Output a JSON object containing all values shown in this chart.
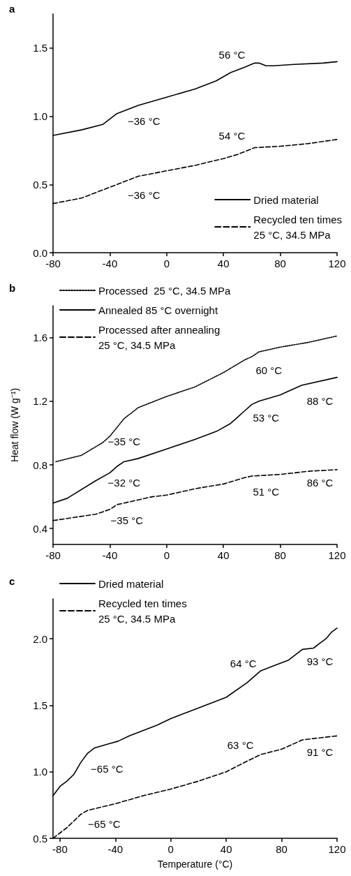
{
  "chart_data": [
    {
      "type": "line",
      "title": "a",
      "xlim": [
        -80,
        120
      ],
      "xticks": [
        -80,
        -40,
        0,
        40,
        80,
        120
      ],
      "ylim": [
        0,
        1.75
      ],
      "yticks": [
        {
          "value": 0,
          "label": "0.0"
        },
        0.5,
        {
          "value": 1,
          "label": "1.0"
        },
        1.5
      ],
      "grid": false,
      "legend": "bottom right",
      "series": [
        {
          "name": "Dried material",
          "color": "#000000",
          "line_style": "solid",
          "x": [
            -80,
            -60,
            -45,
            -35,
            -20,
            0,
            20,
            35,
            45,
            55,
            62,
            65,
            70,
            75,
            90,
            110,
            120
          ],
          "values": [
            0.86,
            0.9,
            0.94,
            1.02,
            1.08,
            1.14,
            1.2,
            1.26,
            1.32,
            1.36,
            1.39,
            1.39,
            1.37,
            1.37,
            1.38,
            1.39,
            1.4
          ]
        },
        {
          "name": "Recycled ten times\n25 °C, 34.5 MPa",
          "color": "#000000",
          "line_style": "dashed",
          "x": [
            -80,
            -60,
            -45,
            -35,
            -20,
            0,
            20,
            40,
            50,
            62,
            80,
            100,
            120
          ],
          "values": [
            0.36,
            0.4,
            0.46,
            0.5,
            0.56,
            0.6,
            0.64,
            0.69,
            0.72,
            0.77,
            0.78,
            0.8,
            0.83
          ]
        }
      ],
      "annotations": [
        "56 °C",
        "−36 °C",
        "54 °C",
        "−36 °C"
      ]
    },
    {
      "type": "line",
      "title": "b",
      "ylabel": "Heat flow (W g⁻¹)",
      "xlim": [
        -80,
        120
      ],
      "xticks": [
        -80,
        -40,
        0,
        40,
        80,
        120
      ],
      "ylim": [
        0.3,
        1.8
      ],
      "yticks": [
        0.4,
        0.8,
        1.2,
        1.6
      ],
      "grid": false,
      "legend": "top left",
      "series": [
        {
          "name": "Processed  25 °C, 34.5 MPa",
          "color": "#000000",
          "line_style": "dotted",
          "x": [
            -78,
            -60,
            -45,
            -40,
            -30,
            -20,
            0,
            20,
            40,
            55,
            60,
            65,
            80,
            100,
            120
          ],
          "values": [
            0.82,
            0.86,
            0.94,
            0.98,
            1.09,
            1.16,
            1.23,
            1.29,
            1.38,
            1.46,
            1.48,
            1.51,
            1.54,
            1.57,
            1.61
          ]
        },
        {
          "name": "Annealed 85 °C overnight",
          "color": "#000000",
          "line_style": "solid",
          "x": [
            -80,
            -70,
            -50,
            -40,
            -35,
            -30,
            -20,
            0,
            20,
            35,
            45,
            50,
            55,
            60,
            65,
            80,
            95,
            120
          ],
          "values": [
            0.56,
            0.59,
            0.7,
            0.75,
            0.79,
            0.82,
            0.84,
            0.9,
            0.96,
            1.01,
            1.06,
            1.1,
            1.14,
            1.18,
            1.2,
            1.24,
            1.3,
            1.35
          ]
        },
        {
          "name": "Processed after annealing\n25 °C, 34.5 MPa",
          "color": "#000000",
          "line_style": "dashed",
          "x": [
            -80,
            -50,
            -40,
            -35,
            -30,
            -10,
            0,
            20,
            40,
            55,
            60,
            80,
            100,
            120
          ],
          "values": [
            0.45,
            0.49,
            0.52,
            0.55,
            0.56,
            0.6,
            0.61,
            0.65,
            0.68,
            0.72,
            0.73,
            0.74,
            0.76,
            0.77
          ]
        }
      ],
      "annotations": [
        "60 °C",
        "88 °C",
        "53 °C",
        "−35 °C",
        "−32 °C",
        "51 °C",
        "86 °C",
        "−35 °C"
      ]
    },
    {
      "type": "line",
      "title": "c",
      "xlabel": "Temperature (°C)",
      "xlim": [
        -85,
        120
      ],
      "xticks": [
        -80,
        -40,
        0,
        40,
        80,
        120
      ],
      "ylim": [
        0.5,
        2.3
      ],
      "yticks": [
        0.5,
        {
          "value": 1,
          "label": "1.0"
        },
        1.5,
        {
          "value": 2,
          "label": "2.0"
        }
      ],
      "grid": false,
      "legend": "top left",
      "series": [
        {
          "name": "Dried material",
          "color": "#000000",
          "line_style": "solid",
          "x": [
            -85,
            -80,
            -75,
            -70,
            -65,
            -60,
            -55,
            -45,
            -38,
            -30,
            -10,
            0,
            20,
            40,
            55,
            65,
            75,
            85,
            95,
            103,
            108,
            112,
            116,
            120
          ],
          "values": [
            0.82,
            0.89,
            0.93,
            0.98,
            1.07,
            1.14,
            1.18,
            1.21,
            1.23,
            1.27,
            1.35,
            1.4,
            1.48,
            1.56,
            1.67,
            1.76,
            1.8,
            1.84,
            1.92,
            1.93,
            1.97,
            2.0,
            2.05,
            2.08
          ]
        },
        {
          "name": "Recycled ten times\n25 °C, 34.5 MPa",
          "color": "#000000",
          "line_style": "dashed",
          "x": [
            -85,
            -75,
            -65,
            -60,
            -40,
            -20,
            0,
            20,
            40,
            55,
            65,
            80,
            95,
            103,
            120
          ],
          "values": [
            0.5,
            0.58,
            0.68,
            0.71,
            0.76,
            0.82,
            0.87,
            0.93,
            1.0,
            1.08,
            1.13,
            1.17,
            1.24,
            1.25,
            1.27
          ]
        }
      ],
      "annotations": [
        "64 °C",
        "93 °C",
        "63 °C",
        "91 °C",
        "−65 °C",
        "−65 °C"
      ]
    }
  ]
}
